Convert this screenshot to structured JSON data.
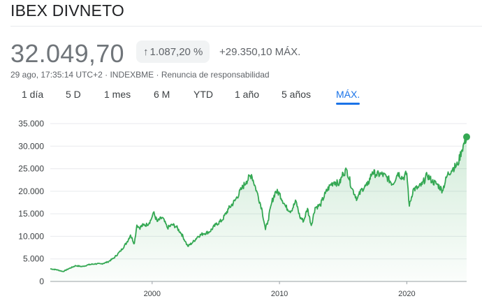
{
  "header": {
    "title": "IBEX DIVNETO"
  },
  "quote": {
    "price": "32.049,70",
    "change_arrow": "↑",
    "change_percent": "1.087,20 %",
    "change_abs": "+29.350,10 MÁX.",
    "timestamp": "29 ago, 17:35:14 UTC+2",
    "exchange": "INDEXBME",
    "disclaimer": "Renuncia de responsabilidad"
  },
  "tabs": [
    {
      "label": "1 día",
      "active": false
    },
    {
      "label": "5 D",
      "active": false
    },
    {
      "label": "1 mes",
      "active": false
    },
    {
      "label": "6 M",
      "active": false
    },
    {
      "label": "YTD",
      "active": false
    },
    {
      "label": "1 año",
      "active": false
    },
    {
      "label": "5 años",
      "active": false
    },
    {
      "label": "MÁX.",
      "active": true
    }
  ],
  "colors": {
    "line": "#34a853",
    "accent": "#1a73e8",
    "grid": "#e8eaed"
  },
  "chart_data": {
    "type": "area",
    "ylim": [
      0,
      35000
    ],
    "xlim": [
      1992.0,
      2024.7
    ],
    "yticks": [
      {
        "value": 0,
        "label": "0"
      },
      {
        "value": 5000,
        "label": "5.000"
      },
      {
        "value": 10000,
        "label": "10.000"
      },
      {
        "value": 15000,
        "label": "15.000"
      },
      {
        "value": 20000,
        "label": "20.000"
      },
      {
        "value": 25000,
        "label": "25.000"
      },
      {
        "value": 30000,
        "label": "30.000"
      },
      {
        "value": 35000,
        "label": "35.000"
      }
    ],
    "xticks": [
      {
        "value": 2000,
        "label": "2000"
      },
      {
        "value": 2010,
        "label": "2010"
      },
      {
        "value": 2020,
        "label": "2020"
      }
    ],
    "grid": true,
    "series": [
      {
        "x": [
          1992.0,
          1992.5,
          1993.0,
          1993.5,
          1994.0,
          1994.5,
          1995.0,
          1995.5,
          1996.0,
          1996.5,
          1997.0,
          1997.5,
          1998.0,
          1998.3,
          1998.6,
          1998.8,
          1999.0,
          1999.3,
          1999.6,
          1999.9,
          2000.1,
          2000.4,
          2000.8,
          2001.2,
          2001.6,
          2001.9,
          2002.3,
          2002.6,
          2002.8,
          2003.2,
          2003.6,
          2004.0,
          2004.5,
          2005.0,
          2005.5,
          2006.0,
          2006.5,
          2007.0,
          2007.4,
          2007.8,
          2008.2,
          2008.6,
          2008.9,
          2009.1,
          2009.4,
          2009.7,
          2010.0,
          2010.5,
          2010.9,
          2011.3,
          2011.6,
          2011.9,
          2012.2,
          2012.5,
          2012.8,
          2013.2,
          2013.6,
          2014.0,
          2014.3,
          2014.7,
          2015.0,
          2015.3,
          2015.7,
          2016.1,
          2016.5,
          2016.9,
          2017.3,
          2017.6,
          2018.0,
          2018.4,
          2018.9,
          2019.3,
          2019.7,
          2020.0,
          2020.2,
          2020.5,
          2020.9,
          2021.2,
          2021.6,
          2022.0,
          2022.4,
          2022.8,
          2023.2,
          2023.6,
          2024.0,
          2024.3,
          2024.7
        ],
        "y": [
          2800,
          2600,
          2200,
          2900,
          3500,
          3300,
          3700,
          3900,
          3900,
          4300,
          5200,
          6700,
          8600,
          10300,
          8400,
          12500,
          11900,
          12500,
          12600,
          13600,
          15300,
          13300,
          14200,
          11900,
          12600,
          12100,
          10600,
          8900,
          7800,
          8700,
          10000,
          10600,
          11000,
          12600,
          13600,
          16100,
          17900,
          20400,
          22200,
          23700,
          20100,
          16300,
          11500,
          13500,
          17600,
          20000,
          19500,
          16500,
          15600,
          17800,
          14300,
          13400,
          16200,
          12400,
          16400,
          16900,
          19500,
          21400,
          22100,
          21600,
          24000,
          24700,
          20600,
          18300,
          20600,
          21300,
          24300,
          23700,
          23800,
          23200,
          21600,
          24100,
          22900,
          24000,
          16700,
          20400,
          20800,
          21500,
          23600,
          22200,
          21500,
          20200,
          23700,
          25000,
          25900,
          29000,
          32050
        ]
      }
    ]
  }
}
